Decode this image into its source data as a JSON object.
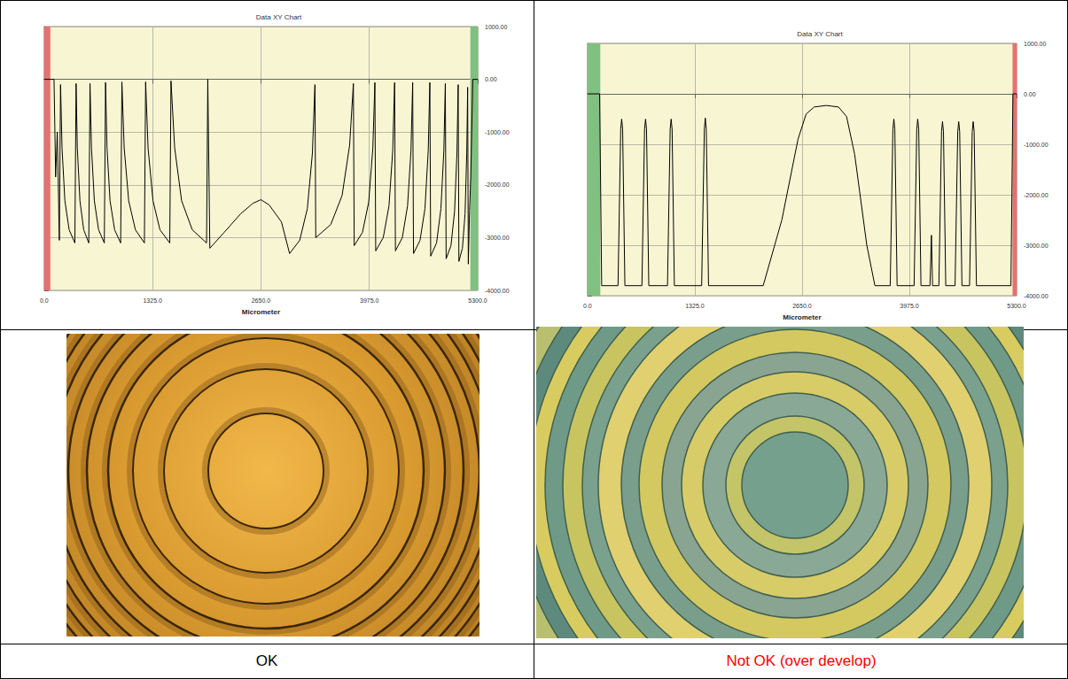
{
  "chart_data": [
    {
      "type": "line",
      "title": "Data XY Chart",
      "xlabel": "Micrometer",
      "color": "#000000",
      "grid": true,
      "x": [
        0,
        120,
        140,
        160,
        185,
        200,
        218,
        253,
        305,
        375,
        390,
        405,
        437,
        483,
        545,
        560,
        578,
        613,
        665,
        735,
        750,
        768,
        805,
        861,
        935,
        950,
        978,
        1033,
        1115,
        1225,
        1240,
        1270,
        1330,
        1415,
        1535,
        1550,
        1595,
        1680,
        1810,
        1985,
        2000,
        2025,
        2200,
        2400,
        2550,
        2650,
        2750,
        2900,
        3000,
        3124,
        3217,
        3279,
        3310,
        3320,
        3504,
        3642,
        3734,
        3780,
        3790,
        3891,
        3967,
        4018,
        4043,
        4053,
        4145,
        4215,
        4261,
        4284,
        4294,
        4378,
        4442,
        4484,
        4505,
        4515,
        4595,
        4655,
        4695,
        4715,
        4725,
        4797,
        4850,
        4886,
        4904,
        4914,
        4973,
        5017,
        5046,
        5061,
        5070,
        5113,
        5145,
        5166,
        5177,
        5185,
        5200,
        5215,
        5240,
        5300
      ],
      "values": [
        0,
        0,
        -1850,
        -1000,
        -3050,
        -100,
        -1300,
        -2300,
        -2850,
        -3100,
        -80,
        -1300,
        -2300,
        -2850,
        -3100,
        -80,
        -1300,
        -2300,
        -2850,
        -3100,
        -60,
        -1300,
        -2300,
        -2850,
        -3100,
        -50,
        -1300,
        -2300,
        -2850,
        -3100,
        -50,
        -1300,
        -2300,
        -2850,
        -3100,
        -30,
        -1300,
        -2300,
        -2850,
        -3100,
        0,
        -3200,
        -2900,
        -2550,
        -2350,
        -2280,
        -2380,
        -2700,
        -3300,
        -3050,
        -2450,
        -1400,
        -100,
        -3000,
        -2750,
        -2200,
        -1250,
        -80,
        -3150,
        -2900,
        -2330,
        -1300,
        -60,
        -3250,
        -3000,
        -2400,
        -1350,
        -60,
        -3250,
        -3000,
        -2400,
        -1350,
        -60,
        -3300,
        -3050,
        -2450,
        -1350,
        -60,
        -3350,
        -3100,
        -2450,
        -1350,
        -80,
        -3400,
        -3150,
        -2500,
        -1400,
        -100,
        -3450,
        -3200,
        -2550,
        -1400,
        -150,
        -3500,
        -2500,
        -1850,
        0,
        0
      ],
      "xlim": [
        0,
        5300
      ],
      "xticks": [
        {
          "value": 0,
          "label": "0.0"
        },
        {
          "value": 1325,
          "label": "1325.0"
        },
        {
          "value": 2650,
          "label": "2650.0"
        },
        {
          "value": 3975,
          "label": "3975.0"
        },
        {
          "value": 5300,
          "label": "5300.0"
        }
      ],
      "ylim": [
        -4000,
        1000
      ],
      "yticks": [
        {
          "value": -4000,
          "label": "-4000.00"
        },
        {
          "value": -3000,
          "label": "-3000.00"
        },
        {
          "value": -2000,
          "label": "-2000.00"
        },
        {
          "value": -1000,
          "label": "-1000.00"
        },
        {
          "value": 0,
          "label": "0.00"
        },
        {
          "value": 1000,
          "label": "1000.00"
        }
      ],
      "bands": [
        {
          "from": 0,
          "to": 75,
          "color": "#e87070"
        },
        {
          "from": 5210,
          "to": 5300,
          "color": "#80c080"
        }
      ]
    },
    {
      "type": "line",
      "title": "Data XY Chart",
      "xlabel": "Micrometer",
      "color": "#000000",
      "grid": true,
      "x": [
        0,
        150,
        175,
        377,
        410,
        422,
        434,
        462,
        672,
        705,
        717,
        729,
        757,
        988,
        1021,
        1033,
        1045,
        1073,
        1410,
        1443,
        1455,
        1467,
        1495,
        2170,
        2400,
        2600,
        2700,
        2800,
        2950,
        3100,
        3200,
        3300,
        3450,
        3550,
        3739,
        3772,
        3784,
        3796,
        3824,
        4034,
        4067,
        4079,
        4091,
        4119,
        4230,
        4248,
        4262,
        4340,
        4373,
        4385,
        4397,
        4425,
        4540,
        4573,
        4585,
        4597,
        4625,
        4719,
        4752,
        4764,
        4776,
        4804,
        5230,
        5255,
        5300
      ],
      "values": [
        0,
        0,
        -3800,
        -3800,
        -700,
        -500,
        -700,
        -3800,
        -3800,
        -700,
        -500,
        -700,
        -3800,
        -3800,
        -700,
        -500,
        -700,
        -3800,
        -3800,
        -700,
        -480,
        -700,
        -3800,
        -3800,
        -2500,
        -900,
        -400,
        -260,
        -230,
        -260,
        -450,
        -1200,
        -3000,
        -3800,
        -3800,
        -700,
        -500,
        -700,
        -3800,
        -3800,
        -700,
        -500,
        -700,
        -3800,
        -3800,
        -2800,
        -3800,
        -3800,
        -750,
        -550,
        -750,
        -3800,
        -3800,
        -750,
        -550,
        -750,
        -3800,
        -3800,
        -750,
        -550,
        -750,
        -3800,
        -3800,
        0,
        0
      ],
      "xlim": [
        0,
        5300
      ],
      "xticks": [
        {
          "value": 0,
          "label": "0.0"
        },
        {
          "value": 1325,
          "label": "1325.0"
        },
        {
          "value": 2650,
          "label": "2650.0"
        },
        {
          "value": 3975,
          "label": "3975.0"
        },
        {
          "value": 5300,
          "label": "5300.0"
        }
      ],
      "ylim": [
        -4000,
        1000
      ],
      "yticks": [
        {
          "value": -4000,
          "label": "-4000.00"
        },
        {
          "value": -3000,
          "label": "-3000.00"
        },
        {
          "value": -2000,
          "label": "-2000.00"
        },
        {
          "value": -1000,
          "label": "-1000.00"
        },
        {
          "value": 0,
          "label": "0.00"
        },
        {
          "value": 1000,
          "label": "1000.00"
        }
      ],
      "bands": [
        {
          "from": 0,
          "to": 158,
          "color": "#80c080"
        },
        {
          "from": 5250,
          "to": 5300,
          "color": "#e87070"
        }
      ]
    }
  ],
  "captions": [
    {
      "text": "OK",
      "color": "#000000"
    },
    {
      "text": "Not OK (over develop)",
      "color": "#ff0000"
    }
  ]
}
